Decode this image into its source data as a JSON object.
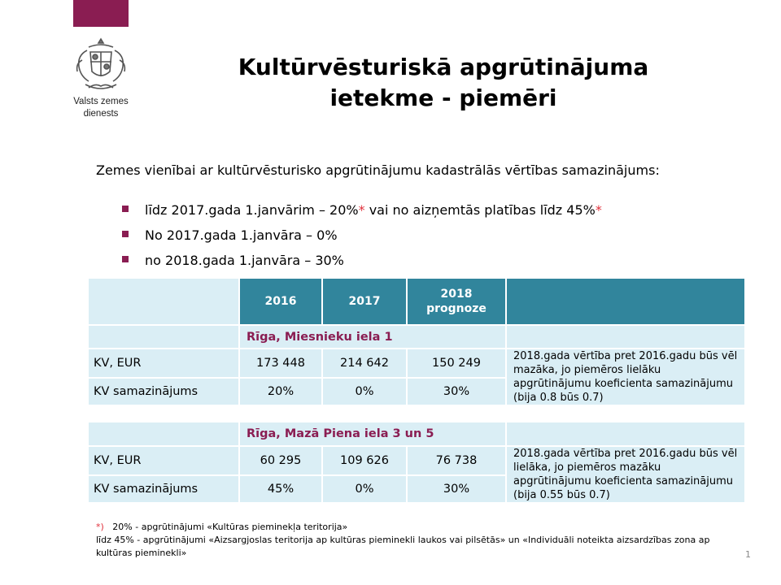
{
  "brand": {
    "name_line1": "Valsts zemes",
    "name_line2": "dienests",
    "accent_color": "#8a1d52",
    "header_color": "#31859c",
    "cell_color": "#daeef5",
    "icon": "coat-of-arms-icon"
  },
  "title": {
    "line1": "Kultūrvēsturiskā apgrūtinājuma",
    "line2": "ietekme - piemēri"
  },
  "intro": "Zemes vienībai ar kultūrvēsturisko apgrūtinājumu kadastrālās vērtības samazinājums:",
  "bullets": [
    {
      "text": "līdz 2017.gada 1.janvārim – 20%",
      "mark1": "*",
      "middle": " vai no aizņemtās platības līdz 45%",
      "mark2": "*"
    },
    {
      "text": "No 2017.gada 1.janvāra – 0%"
    },
    {
      "text": "no 2018.gada 1.janvāra – 30%"
    }
  ],
  "table": {
    "columns": {
      "c2016": "2016",
      "c2017": "2017",
      "c2018_line1": "2018",
      "c2018_line2": "prognoze"
    },
    "examples": [
      {
        "address": "Rīga, Miesnieku iela 1",
        "rows": [
          {
            "label": "KV, EUR",
            "v2016": "173 448",
            "v2017": "214 642",
            "v2018": "150 249"
          },
          {
            "label": "KV samazinājums",
            "v2016": "20%",
            "v2017": "0%",
            "v2018": "30%"
          }
        ],
        "note": "2018.gada vērtība pret 2016.gadu būs vēl mazāka, jo piemēros lielāku apgrūtinājumu koeficienta samazinājumu (bija 0.8 būs 0.7)"
      },
      {
        "address": "Rīga, Mazā Piena iela 3 un 5",
        "rows": [
          {
            "label": "KV, EUR",
            "v2016": "60 295",
            "v2017": "109 626",
            "v2018": "76 738"
          },
          {
            "label": "KV samazinājums",
            "v2016": "45%",
            "v2017": "0%",
            "v2018": "30%"
          }
        ],
        "note": "2018.gada vērtība pret 2016.gadu būs vēl lielāka, jo piemēros mazāku apgrūtinājumu koeficienta samazinājumu (bija 0.55 būs 0.7)"
      }
    ]
  },
  "footnote": {
    "mark": "*)",
    "line1": "20% - apgrūtinājumi «Kultūras pieminekļa teritorija»",
    "line2": "līdz 45% - apgrūtinājumi «Aizsargjoslas teritorija ap kultūras pieminekli laukos vai pilsētās» un «Individuāli noteikta aizsardzības zona ap kultūras pieminekli»"
  },
  "page_number": "1"
}
